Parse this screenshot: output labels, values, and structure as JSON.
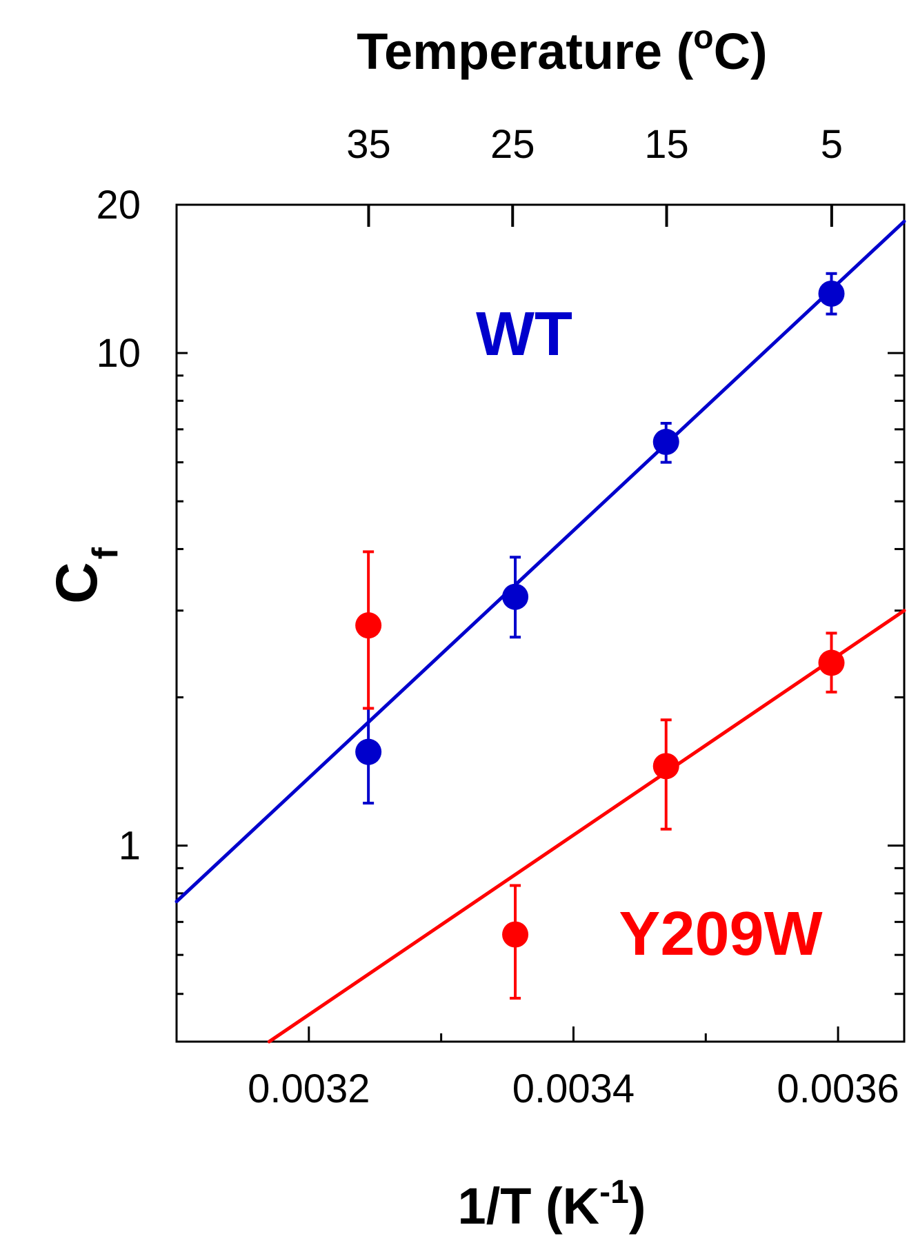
{
  "chart_data": {
    "type": "scatter",
    "title": "",
    "xlabel": "1/T (K-1)",
    "xlabel_main": "1/T (K",
    "xlabel_sup": "-1",
    "xlabel_end": ")",
    "ylabel": "Cf",
    "ylabel_main": "C",
    "ylabel_sub": "f",
    "top_xlabel": "Temperature (oC)",
    "top_xlabel_main": "Temperature (",
    "top_xlabel_sup": "o",
    "top_xlabel_end": "C)",
    "xlim": [
      0.0031,
      0.00365
    ],
    "ylim": [
      0.4,
      20
    ],
    "yscale": "log",
    "x_ticks": [
      0.0032,
      0.0034,
      0.0036
    ],
    "x_tick_labels": [
      "0.0032",
      "0.0034",
      "0.0036"
    ],
    "y_tick_labels": [
      {
        "value": 1,
        "label": "1"
      },
      {
        "value": 10,
        "label": "10"
      },
      {
        "value": 20,
        "label": "20"
      }
    ],
    "top_ticks_celsius": [
      35,
      25,
      15,
      5
    ],
    "top_tick_labels": [
      "35",
      "25",
      "15",
      "5"
    ],
    "series": [
      {
        "name": "WT",
        "color": "#0000cc",
        "points": [
          {
            "x": 0.003245,
            "y": 1.55,
            "ylow": 1.22,
            "yhigh": 1.9
          },
          {
            "x": 0.003356,
            "y": 3.2,
            "ylow": 2.65,
            "yhigh": 3.85
          },
          {
            "x": 0.00347,
            "y": 6.6,
            "ylow": 6.0,
            "yhigh": 7.2
          },
          {
            "x": 0.003595,
            "y": 13.2,
            "ylow": 12.0,
            "yhigh": 14.5
          }
        ],
        "fit": {
          "x1": 0.0031,
          "y1": 0.77,
          "x2": 0.00365,
          "y2": 18.5
        }
      },
      {
        "name": "Y209W",
        "color": "#ff0000",
        "points": [
          {
            "x": 0.003245,
            "y": 2.8,
            "ylow": 1.9,
            "yhigh": 3.95
          },
          {
            "x": 0.003356,
            "y": 0.66,
            "ylow": 0.49,
            "yhigh": 0.83
          },
          {
            "x": 0.00347,
            "y": 1.45,
            "ylow": 1.08,
            "yhigh": 1.8
          },
          {
            "x": 0.003595,
            "y": 2.35,
            "ylow": 2.05,
            "yhigh": 2.7
          }
        ],
        "fit": {
          "x1": 0.00317,
          "y1": 0.4,
          "x2": 0.00365,
          "y2": 3.0
        }
      }
    ],
    "annotations": [
      {
        "text": "WT",
        "color": "#0000cc"
      },
      {
        "text": "Y209W",
        "color": "#ff0000"
      }
    ]
  }
}
